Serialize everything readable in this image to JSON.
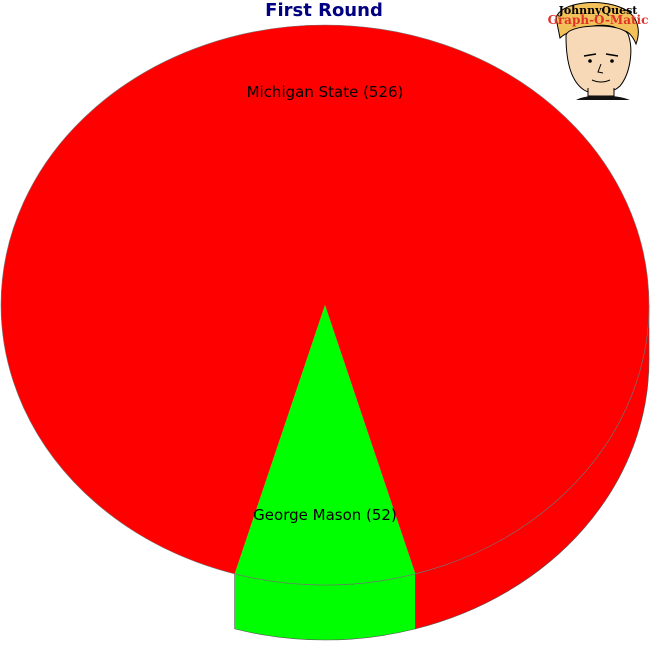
{
  "chart_data": {
    "type": "pie",
    "title": "First Round",
    "slices": [
      {
        "label": "Michigan State (526)",
        "name": "Michigan State",
        "value": 526,
        "color": "#ff0000"
      },
      {
        "label": "George Mason (52)",
        "name": "George Mason",
        "value": 52,
        "color": "#00ff00"
      }
    ],
    "style": "3d"
  },
  "logo": {
    "brand": "JohnnyQuest",
    "product": "Graph-O-Matic",
    "icon": "cartoon-boy-portrait"
  }
}
